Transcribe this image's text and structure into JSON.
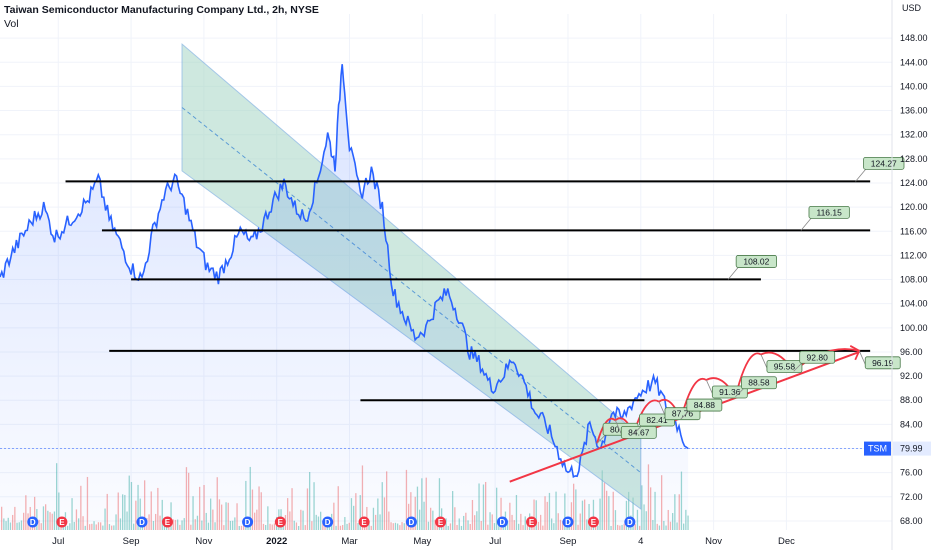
{
  "header": {
    "title": "Taiwan Semiconductor Manufacturing Company Ltd., 2h, NYSE",
    "vol_label": "Vol"
  },
  "chart_data": {
    "type": "line",
    "currency": "USD",
    "y_ticks": [
      68,
      72,
      76,
      80,
      84,
      88,
      92,
      96,
      100,
      104,
      108,
      112,
      116,
      120,
      124,
      128,
      132,
      136,
      140,
      144,
      148
    ],
    "ylim": [
      66.5,
      152
    ],
    "x_ticks": [
      {
        "label": "Jul",
        "t": 0.6
      },
      {
        "label": "Sep",
        "t": 2.6
      },
      {
        "label": "Nov",
        "t": 4.6
      },
      {
        "label": "2022",
        "t": 6.6,
        "bold": true
      },
      {
        "label": "Mar",
        "t": 8.6
      },
      {
        "label": "May",
        "t": 10.6
      },
      {
        "label": "Jul",
        "t": 12.6
      },
      {
        "label": "Sep",
        "t": 14.6
      },
      {
        "label": "4",
        "t": 16.6
      },
      {
        "label": "Nov",
        "t": 18.6
      },
      {
        "label": "Dec",
        "t": 20.6
      }
    ],
    "xlim": [
      -1,
      23.5
    ],
    "price_series": [
      [
        -1.0,
        108
      ],
      [
        -0.7,
        112
      ],
      [
        -0.4,
        115
      ],
      [
        -0.1,
        118
      ],
      [
        0.2,
        120
      ],
      [
        0.5,
        115
      ],
      [
        0.8,
        117
      ],
      [
        1.1,
        119
      ],
      [
        1.4,
        121
      ],
      [
        1.7,
        124.5
      ],
      [
        2.0,
        118
      ],
      [
        2.3,
        114
      ],
      [
        2.6,
        110
      ],
      [
        2.9,
        108
      ],
      [
        3.2,
        116
      ],
      [
        3.5,
        122
      ],
      [
        3.8,
        124.7
      ],
      [
        4.1,
        120
      ],
      [
        4.4,
        114
      ],
      [
        4.7,
        110
      ],
      [
        5.0,
        108.5
      ],
      [
        5.3,
        112
      ],
      [
        5.6,
        116
      ],
      [
        5.9,
        114
      ],
      [
        6.2,
        117
      ],
      [
        6.5,
        121
      ],
      [
        6.8,
        124
      ],
      [
        7.1,
        120
      ],
      [
        7.4,
        118
      ],
      [
        7.7,
        124
      ],
      [
        8.0,
        132
      ],
      [
        8.2,
        127
      ],
      [
        8.4,
        144.5
      ],
      [
        8.6,
        130
      ],
      [
        8.9,
        122
      ],
      [
        9.2,
        126
      ],
      [
        9.5,
        120
      ],
      [
        9.8,
        106
      ],
      [
        10.1,
        102
      ],
      [
        10.4,
        98.5
      ],
      [
        10.7,
        100
      ],
      [
        11.0,
        104
      ],
      [
        11.3,
        106
      ],
      [
        11.6,
        102
      ],
      [
        11.9,
        96
      ],
      [
        12.2,
        94
      ],
      [
        12.5,
        90
      ],
      [
        12.8,
        92
      ],
      [
        13.1,
        95
      ],
      [
        13.4,
        91
      ],
      [
        13.7,
        86
      ],
      [
        14.0,
        84
      ],
      [
        14.3,
        80
      ],
      [
        14.6,
        76
      ],
      [
        14.9,
        76.5
      ],
      [
        15.2,
        84
      ],
      [
        15.5,
        80
      ],
      [
        15.8,
        86
      ],
      [
        16.1,
        85
      ],
      [
        16.4,
        88
      ],
      [
        16.7,
        90
      ],
      [
        17.0,
        91
      ],
      [
        17.3,
        87
      ],
      [
        17.6,
        84
      ],
      [
        17.9,
        80
      ]
    ],
    "horizontal_levels": [
      {
        "price": 124.27,
        "t_start": 0.8,
        "t_end": 22.9,
        "label": "124.27"
      },
      {
        "price": 116.15,
        "t_start": 1.8,
        "t_end": 22.9,
        "label": "116.15"
      },
      {
        "price": 108.02,
        "t_start": 2.6,
        "t_end": 19.9,
        "label": "108.02"
      },
      {
        "price": 96.19,
        "t_start": 2.0,
        "t_end": 22.9,
        "label": "96.19"
      },
      {
        "price": 88.0,
        "t_start": 8.9,
        "t_end": 16.7,
        "label": ""
      }
    ],
    "channel": {
      "upper_start": [
        4.0,
        147
      ],
      "upper_end": [
        16.6,
        82
      ],
      "lower_start": [
        4.0,
        126
      ],
      "lower_end": [
        16.6,
        70
      ],
      "t_right": 16.6
    },
    "trendline": {
      "start": [
        13.0,
        74.5
      ],
      "end": [
        22.6,
        96.0
      ]
    },
    "projection_points": [
      {
        "t": 15.4,
        "price": 80.87,
        "label": "80.87"
      },
      {
        "t": 15.9,
        "price": 84.67,
        "label": "84.67"
      },
      {
        "t": 16.4,
        "price": 82.41,
        "label": "82.41"
      },
      {
        "t": 17.1,
        "price": 87.76,
        "label": "87.76"
      },
      {
        "t": 17.7,
        "price": 84.88,
        "label": "84.88"
      },
      {
        "t": 18.4,
        "price": 91.36,
        "label": "91.36"
      },
      {
        "t": 19.2,
        "price": 88.58,
        "label": "88.58"
      },
      {
        "t": 19.9,
        "price": 95.58,
        "label": "95.58"
      },
      {
        "t": 20.8,
        "price": 92.8,
        "label": "92.80"
      },
      {
        "t": 22.6,
        "price": 96.19,
        "label": "96.19"
      }
    ],
    "level_labels": [
      {
        "t": 22.5,
        "price": 124.27,
        "label": "124.27"
      },
      {
        "t": 21.0,
        "price": 116.15,
        "label": "116.15"
      },
      {
        "t": 19.0,
        "price": 108.02,
        "label": "108.02"
      }
    ],
    "events": [
      {
        "type": "D",
        "t": -0.1
      },
      {
        "type": "E",
        "t": 0.7
      },
      {
        "type": "D",
        "t": 2.9
      },
      {
        "type": "E",
        "t": 3.6
      },
      {
        "type": "D",
        "t": 5.8
      },
      {
        "type": "E",
        "t": 6.7
      },
      {
        "type": "D",
        "t": 8.0
      },
      {
        "type": "E",
        "t": 9.0
      },
      {
        "type": "D",
        "t": 10.3
      },
      {
        "type": "E",
        "t": 11.1
      },
      {
        "type": "D",
        "t": 12.8
      },
      {
        "type": "E",
        "t": 13.6
      },
      {
        "type": "D",
        "t": 14.6
      },
      {
        "type": "E",
        "t": 15.3
      },
      {
        "type": "D",
        "t": 16.3
      }
    ],
    "symbol": "TSM",
    "last_price": 79.99,
    "last_price_label": "79.99"
  },
  "colors": {
    "price_line": "#2962ff",
    "channel_fill": "#a7d7c5",
    "channel_line": "#5b9bd5",
    "levels": "#000000",
    "trend": "#f23645",
    "label_bg": "#c8e6c9",
    "event_blue": "#2962ff",
    "event_red": "#f23645",
    "tsm_tag": "#2962ff",
    "volume_up": "#26a69a",
    "volume_down": "#ef5350"
  }
}
